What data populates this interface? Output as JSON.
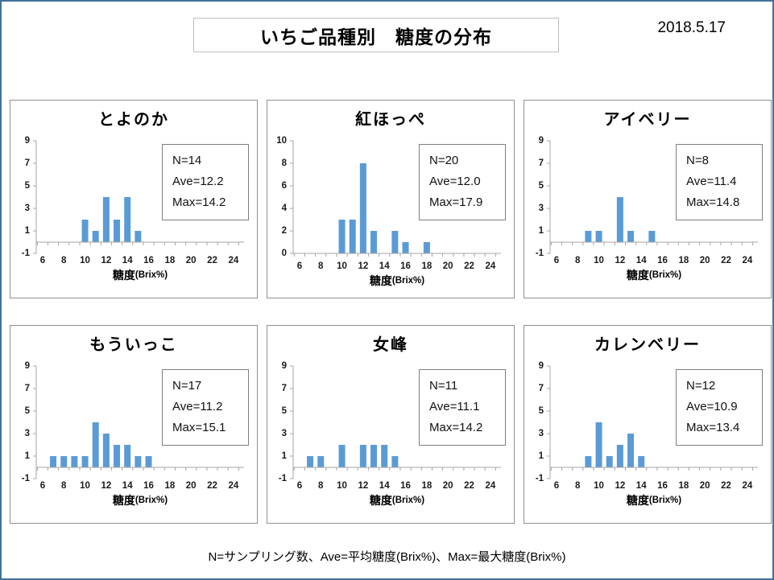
{
  "page": {
    "title": "いちご品種別　糖度の分布",
    "date": "2018.5.17",
    "footnote": "N=サンプリング数、Ave=平均糖度(Brix%)、Max=最大糖度(Brix%)"
  },
  "colors": {
    "bar": "#5B9BD5",
    "axis": "#A6A6A6",
    "tick_text": "#1a1a1a",
    "page_border": "#41719C",
    "panel_border": "#909090"
  },
  "chart_data": [
    {
      "type": "bar",
      "title": "とよのか",
      "xlabel": "糖度(Brix%)",
      "x": [
        10,
        11,
        12,
        13,
        14,
        15
      ],
      "values": [
        2,
        1,
        4,
        2,
        4,
        1
      ],
      "xticks": [
        6,
        8,
        10,
        12,
        14,
        16,
        18,
        20,
        22,
        24
      ],
      "yticks": [
        -1,
        1,
        3,
        5,
        7,
        9
      ],
      "ylim": [
        -1,
        9
      ],
      "xlim": [
        5.4,
        25
      ],
      "grid": false,
      "stats": {
        "n": "N=14",
        "ave": "Ave=12.2",
        "max": "Max=14.2"
      }
    },
    {
      "type": "bar",
      "title": "紅ほっぺ",
      "xlabel": "糖度(Brix%)",
      "x": [
        10,
        11,
        12,
        13,
        15,
        16,
        18
      ],
      "values": [
        3,
        3,
        8,
        2,
        2,
        1,
        1
      ],
      "xticks": [
        6,
        8,
        10,
        12,
        14,
        16,
        18,
        20,
        22,
        24
      ],
      "yticks": [
        0,
        2,
        4,
        6,
        8,
        10
      ],
      "ylim": [
        0,
        10
      ],
      "xlim": [
        5.4,
        25
      ],
      "grid": false,
      "stats": {
        "n": "N=20",
        "ave": "Ave=12.0",
        "max": "Max=17.9"
      }
    },
    {
      "type": "bar",
      "title": "アイベリー",
      "xlabel": "糖度(Brix%)",
      "x": [
        9,
        10,
        12,
        13,
        15
      ],
      "values": [
        1,
        1,
        4,
        1,
        1
      ],
      "xticks": [
        6,
        8,
        10,
        12,
        14,
        16,
        18,
        20,
        22,
        24
      ],
      "yticks": [
        -1,
        1,
        3,
        5,
        7,
        9
      ],
      "ylim": [
        -1,
        9
      ],
      "xlim": [
        5.4,
        25
      ],
      "grid": false,
      "stats": {
        "n": "N=8",
        "ave": "Ave=11.4",
        "max": "Max=14.8"
      }
    },
    {
      "type": "bar",
      "title": "もういっこ",
      "xlabel": "糖度(Brix%)",
      "x": [
        7,
        8,
        9,
        10,
        11,
        12,
        13,
        14,
        15,
        16
      ],
      "values": [
        1,
        1,
        1,
        1,
        4,
        3,
        2,
        2,
        1,
        1
      ],
      "xticks": [
        6,
        8,
        10,
        12,
        14,
        16,
        18,
        20,
        22,
        24
      ],
      "yticks": [
        -1,
        1,
        3,
        5,
        7,
        9
      ],
      "ylim": [
        -1,
        9
      ],
      "xlim": [
        5.4,
        25
      ],
      "grid": false,
      "stats": {
        "n": "N=17",
        "ave": "Ave=11.2",
        "max": "Max=15.1"
      }
    },
    {
      "type": "bar",
      "title": "女峰",
      "xlabel": "糖度(Brix%)",
      "x": [
        7,
        8,
        10,
        12,
        13,
        14,
        15
      ],
      "values": [
        1,
        1,
        2,
        2,
        2,
        2,
        1
      ],
      "xticks": [
        6,
        8,
        10,
        12,
        14,
        16,
        18,
        20,
        22,
        24
      ],
      "yticks": [
        -1,
        1,
        3,
        5,
        7,
        9
      ],
      "ylim": [
        -1,
        9
      ],
      "xlim": [
        5.4,
        25
      ],
      "grid": false,
      "stats": {
        "n": "N=11",
        "ave": "Ave=11.1",
        "max": "Max=14.2"
      }
    },
    {
      "type": "bar",
      "title": "カレンベリー",
      "xlabel": "糖度(Brix%)",
      "x": [
        9,
        10,
        11,
        12,
        13,
        14
      ],
      "values": [
        1,
        4,
        1,
        2,
        3,
        1
      ],
      "xticks": [
        6,
        8,
        10,
        12,
        14,
        16,
        18,
        20,
        22,
        24
      ],
      "yticks": [
        -1,
        1,
        3,
        5,
        7,
        9
      ],
      "ylim": [
        -1,
        9
      ],
      "xlim": [
        5.4,
        25
      ],
      "grid": false,
      "stats": {
        "n": "N=12",
        "ave": "Ave=10.9",
        "max": "Max=13.4"
      }
    }
  ]
}
